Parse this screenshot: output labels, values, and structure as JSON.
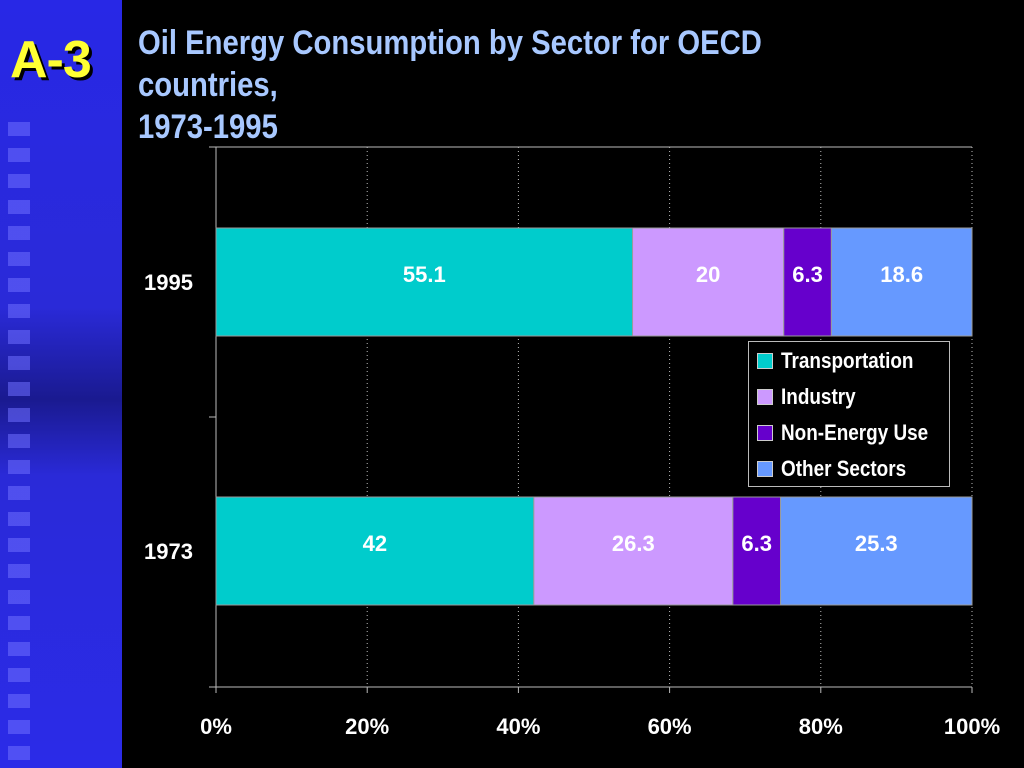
{
  "slide": {
    "label": "A-3",
    "title_line1": "Oil Energy Consumption by Sector for OECD countries,",
    "title_line2": "1973-1995"
  },
  "colors": {
    "background": "#000000",
    "sidebar": "#2a2ae0",
    "title": "#a8c8ff",
    "label_accent": "#ffff33"
  },
  "chart_data": {
    "type": "bar",
    "orientation": "horizontal",
    "stacked": "percent",
    "title": "Oil Energy Consumption by Sector for OECD countries, 1973-1995",
    "categories": [
      "1995",
      "1973"
    ],
    "series": [
      {
        "name": "Transportation",
        "values": [
          55.1,
          42
        ],
        "color": "#00cccc"
      },
      {
        "name": "Industry",
        "values": [
          20,
          26.3
        ],
        "color": "#cc99ff"
      },
      {
        "name": "Non-Energy Use",
        "values": [
          6.3,
          6.3
        ],
        "color": "#6600cc"
      },
      {
        "name": "Other Sectors",
        "values": [
          18.6,
          25.3
        ],
        "color": "#6699ff"
      }
    ],
    "xlim": [
      0,
      100
    ],
    "xticks": [
      "0%",
      "20%",
      "40%",
      "60%",
      "80%",
      "100%"
    ],
    "grid": "vertical dotted",
    "legend_position": "center-right"
  }
}
